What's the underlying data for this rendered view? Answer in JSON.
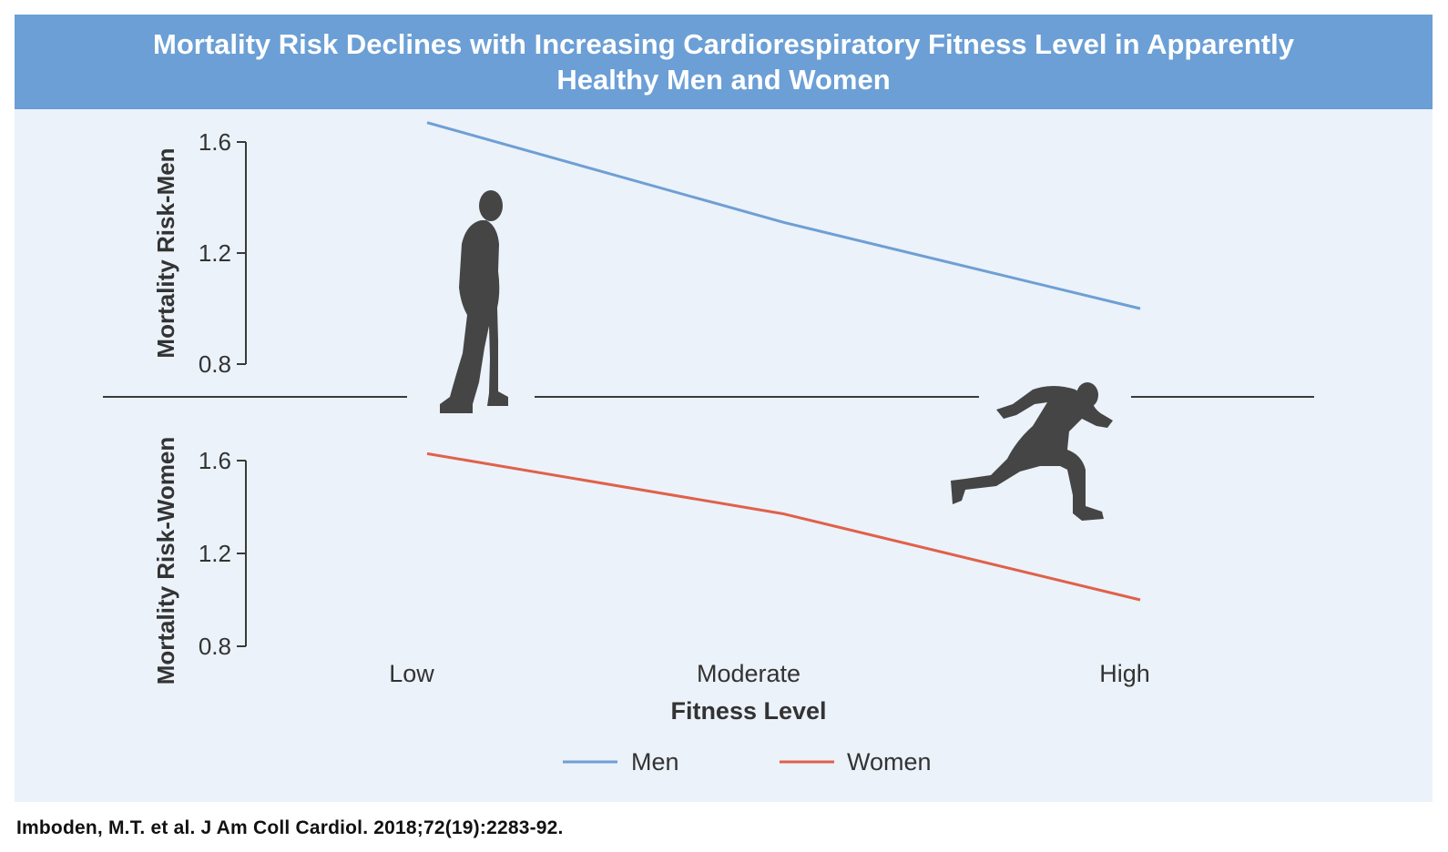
{
  "title": "Mortality Risk Declines with Increasing Cardiorespiratory Fitness Level in Apparently Healthy Men and Women",
  "citation": "Imboden, M.T. et al. J Am Coll Cardiol. 2018;72(19):2283-92.",
  "colors": {
    "men": "#6e9fd4",
    "women": "#e0614a",
    "axis": "#3a3a3a",
    "silhouette": "#454545"
  },
  "chart_data": [
    {
      "type": "line",
      "panel": "top",
      "ylabel": "Mortality Risk-Men",
      "yticks": [
        0.8,
        1.2,
        1.6
      ],
      "ylim": [
        0.8,
        1.6
      ],
      "categories": [
        "Low",
        "Moderate",
        "High"
      ],
      "series": [
        {
          "name": "Men",
          "values": [
            1.67,
            1.31,
            1.0
          ]
        }
      ]
    },
    {
      "type": "line",
      "panel": "bottom",
      "ylabel": "Mortality Risk-Women",
      "yticks": [
        0.8,
        1.2,
        1.6
      ],
      "ylim": [
        0.8,
        1.6
      ],
      "categories": [
        "Low",
        "Moderate",
        "High"
      ],
      "xlabel": "Fitness Level",
      "series": [
        {
          "name": "Women",
          "values": [
            1.63,
            1.37,
            1.0
          ]
        }
      ]
    }
  ],
  "legend": {
    "position": "bottom-center",
    "items": [
      "Men",
      "Women"
    ]
  },
  "icons": [
    "standing-person-icon",
    "sprinting-person-icon"
  ]
}
